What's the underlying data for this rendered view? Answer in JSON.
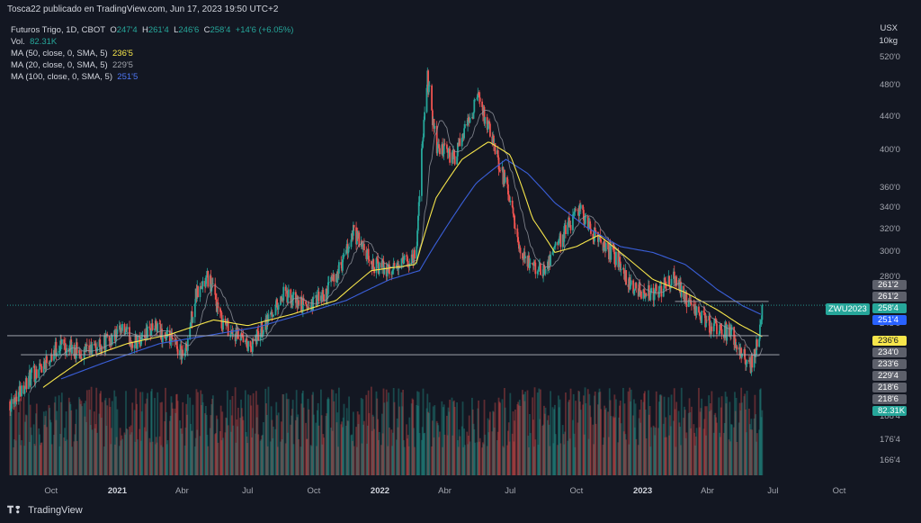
{
  "header": {
    "attribution": "Tosca22 publicado en TradingView.com, Jun 17, 2023 19:50 UTC+2"
  },
  "legend": {
    "symbol": "Futuros Trigo, 1D, CBOT",
    "o_label": "O",
    "o_value": "247'4",
    "h_label": "H",
    "h_value": "261'4",
    "l_label": "L",
    "l_value": "246'6",
    "c_label": "C",
    "c_value": "258'4",
    "change": "+14'6 (+6.05%)",
    "vol_label": "Vol.",
    "vol_value": "82.31K",
    "ma50_label": "MA (50, close, 0, SMA, 5)",
    "ma50_value": "236'5",
    "ma20_label": "MA (20, close, 0, SMA, 5)",
    "ma20_value": "229'5",
    "ma100_label": "MA (100, close, 0, SMA, 5)",
    "ma100_value": "251'5"
  },
  "axis_unit": {
    "line1": "USX",
    "line2": "10kg"
  },
  "symbol_tag": "ZWU2023",
  "price_boxes": [
    {
      "label": "261'2",
      "y": 261.25,
      "bg": "#5d606b",
      "fg": "#ffffff"
    },
    {
      "label": "261'2",
      "y": 255.8,
      "bg": "#5d606b",
      "fg": "#ffffff"
    },
    {
      "label": "258'4",
      "y": 251.5,
      "bg": "#26a69a",
      "fg": "#ffffff"
    },
    {
      "label": "251'4",
      "y": 246.9,
      "bg": "#2962ff",
      "fg": "#ffffff"
    },
    {
      "label": "236'6",
      "y": 237.2,
      "bg": "#f7e64b",
      "fg": "#131722"
    },
    {
      "label": "234'0",
      "y": 232.9,
      "bg": "#5d606b",
      "fg": "#ffffff"
    },
    {
      "label": "233'6",
      "y": 228.8,
      "bg": "#5d606b",
      "fg": "#ffffff"
    },
    {
      "label": "229'4",
      "y": 224.8,
      "bg": "#5d606b",
      "fg": "#ffffff"
    },
    {
      "label": "218'6",
      "y": 220.6,
      "bg": "#5d606b",
      "fg": "#ffffff"
    },
    {
      "label": "218'6",
      "y": 216.5,
      "bg": "#5d606b",
      "fg": "#ffffff"
    },
    {
      "label": "82.31K",
      "y": 212.3,
      "bg": "#26a69a",
      "fg": "#ffffff"
    }
  ],
  "footer": {
    "brand": "TradingView"
  },
  "colors": {
    "bg": "#131722",
    "up": "#26a69a",
    "down": "#ef5350",
    "ma50": "#f7e64b",
    "ma20": "#9598a1",
    "ma100": "#3a5fd9"
  },
  "chart_data": {
    "type": "candlestick",
    "title": "Futuros Trigo, 1D, CBOT",
    "scale": "log",
    "ylim": [
      160,
      525
    ],
    "y_ticks": [
      {
        "label": "520'0",
        "v": 520
      },
      {
        "label": "480'0",
        "v": 480
      },
      {
        "label": "440'0",
        "v": 440
      },
      {
        "label": "400'0",
        "v": 400
      },
      {
        "label": "360'0",
        "v": 360
      },
      {
        "label": "340'0",
        "v": 340
      },
      {
        "label": "320'0",
        "v": 320
      },
      {
        "label": "300'0",
        "v": 300
      },
      {
        "label": "280'0",
        "v": 280
      },
      {
        "label": "245'0",
        "v": 245
      },
      {
        "label": "188'4",
        "v": 188.5
      },
      {
        "label": "176'4",
        "v": 176.5
      },
      {
        "label": "166'4",
        "v": 166.5
      }
    ],
    "x_ticks": [
      {
        "label": "Oct",
        "date": "2020-10-01",
        "bold": false
      },
      {
        "label": "2021",
        "date": "2021-01-01",
        "bold": true
      },
      {
        "label": "Abr",
        "date": "2021-04-01",
        "bold": false
      },
      {
        "label": "Jul",
        "date": "2021-07-01",
        "bold": false
      },
      {
        "label": "Oct",
        "date": "2021-10-01",
        "bold": false
      },
      {
        "label": "2022",
        "date": "2022-01-01",
        "bold": true
      },
      {
        "label": "Abr",
        "date": "2022-04-01",
        "bold": false
      },
      {
        "label": "Jul",
        "date": "2022-07-01",
        "bold": false
      },
      {
        "label": "Oct",
        "date": "2022-10-01",
        "bold": false
      },
      {
        "label": "2023",
        "date": "2023-01-01",
        "bold": true
      },
      {
        "label": "Abr",
        "date": "2023-04-01",
        "bold": false
      },
      {
        "label": "Jul",
        "date": "2023-07-01",
        "bold": false
      },
      {
        "label": "Oct",
        "date": "2023-10-01",
        "bold": false
      }
    ],
    "x_range": [
      "2020-08-01",
      "2023-11-10"
    ],
    "price_path": [
      [
        "2020-08-05",
        197
      ],
      [
        "2020-09-01",
        210
      ],
      [
        "2020-10-15",
        232
      ],
      [
        "2020-11-15",
        225
      ],
      [
        "2020-12-15",
        233
      ],
      [
        "2021-01-10",
        240
      ],
      [
        "2021-01-25",
        232
      ],
      [
        "2021-02-20",
        243
      ],
      [
        "2021-03-20",
        232
      ],
      [
        "2021-04-05",
        225
      ],
      [
        "2021-04-20",
        265
      ],
      [
        "2021-05-08",
        280
      ],
      [
        "2021-05-25",
        248
      ],
      [
        "2021-06-15",
        237
      ],
      [
        "2021-07-05",
        228
      ],
      [
        "2021-07-25",
        246
      ],
      [
        "2021-08-20",
        266
      ],
      [
        "2021-09-20",
        257
      ],
      [
        "2021-10-15",
        265
      ],
      [
        "2021-11-10",
        290
      ],
      [
        "2021-11-25",
        318
      ],
      [
        "2021-12-20",
        290
      ],
      [
        "2022-01-20",
        285
      ],
      [
        "2022-02-20",
        298
      ],
      [
        "2022-03-08",
        490
      ],
      [
        "2022-03-20",
        405
      ],
      [
        "2022-04-15",
        390
      ],
      [
        "2022-05-17",
        465
      ],
      [
        "2022-06-10",
        400
      ],
      [
        "2022-06-28",
        355
      ],
      [
        "2022-07-15",
        295
      ],
      [
        "2022-08-15",
        285
      ],
      [
        "2022-09-15",
        318
      ],
      [
        "2022-10-05",
        340
      ],
      [
        "2022-10-25",
        315
      ],
      [
        "2022-11-25",
        295
      ],
      [
        "2022-12-20",
        270
      ],
      [
        "2023-01-20",
        268
      ],
      [
        "2023-02-15",
        280
      ],
      [
        "2023-03-10",
        255
      ],
      [
        "2023-04-05",
        245
      ],
      [
        "2023-05-05",
        238
      ],
      [
        "2023-05-31",
        218
      ],
      [
        "2023-06-10",
        232
      ],
      [
        "2023-06-16",
        258.5
      ]
    ],
    "ma50_path": [
      [
        "2020-09-20",
        205
      ],
      [
        "2020-11-15",
        222
      ],
      [
        "2021-01-15",
        232
      ],
      [
        "2021-03-15",
        238
      ],
      [
        "2021-05-15",
        248
      ],
      [
        "2021-07-01",
        244
      ],
      [
        "2021-09-01",
        252
      ],
      [
        "2021-11-01",
        262
      ],
      [
        "2021-12-20",
        285
      ],
      [
        "2022-02-20",
        290
      ],
      [
        "2022-03-20",
        350
      ],
      [
        "2022-04-25",
        390
      ],
      [
        "2022-06-01",
        410
      ],
      [
        "2022-07-01",
        395
      ],
      [
        "2022-08-01",
        330
      ],
      [
        "2022-09-01",
        300
      ],
      [
        "2022-10-01",
        305
      ],
      [
        "2022-11-01",
        315
      ],
      [
        "2022-12-01",
        300
      ],
      [
        "2023-01-15",
        278
      ],
      [
        "2023-03-01",
        268
      ],
      [
        "2023-04-15",
        255
      ],
      [
        "2023-05-15",
        245
      ],
      [
        "2023-06-16",
        236.6
      ]
    ],
    "ma100_path": [
      [
        "2020-10-15",
        210
      ],
      [
        "2020-12-15",
        220
      ],
      [
        "2021-03-01",
        232
      ],
      [
        "2021-05-15",
        238
      ],
      [
        "2021-07-15",
        243
      ],
      [
        "2021-09-15",
        252
      ],
      [
        "2021-11-15",
        262
      ],
      [
        "2022-01-15",
        278
      ],
      [
        "2022-02-25",
        285
      ],
      [
        "2022-04-01",
        320
      ],
      [
        "2022-05-15",
        365
      ],
      [
        "2022-06-25",
        390
      ],
      [
        "2022-07-25",
        375
      ],
      [
        "2022-09-01",
        345
      ],
      [
        "2022-10-15",
        322
      ],
      [
        "2022-12-01",
        305
      ],
      [
        "2023-01-15",
        300
      ],
      [
        "2023-03-01",
        290
      ],
      [
        "2023-04-15",
        270
      ],
      [
        "2023-05-20",
        258
      ],
      [
        "2023-06-16",
        251.5
      ]
    ],
    "volume": {
      "max": 140000,
      "last": 82310
    },
    "h_lines": [
      {
        "v": 237.2,
        "from": "2020-08-01",
        "to": "2023-06-25",
        "color": "#b2b5be"
      },
      {
        "v": 224.8,
        "from": "2020-08-20",
        "to": "2023-07-10",
        "color": "#b2b5be"
      },
      {
        "v": 261.25,
        "from": "2023-02-15",
        "to": "2023-06-25",
        "color": "#9598a1"
      },
      {
        "v": 258.5,
        "from": "2020-08-01",
        "to": "2023-11-10",
        "color": "#26a69a",
        "dashed": true
      }
    ]
  }
}
